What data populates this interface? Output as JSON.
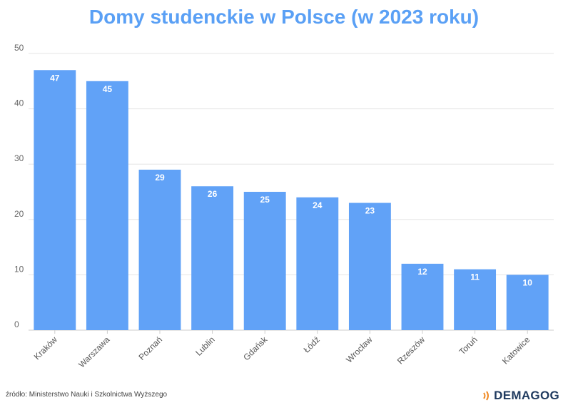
{
  "chart_data": {
    "type": "bar",
    "title": "Domy studenckie w Polsce (w 2023 roku)",
    "categories": [
      "Kraków",
      "Warszawa",
      "Poznań",
      "Lublin",
      "Gdańsk",
      "Łódź",
      "Wrocław",
      "Rzeszów",
      "Toruń",
      "Katowice"
    ],
    "values": [
      47,
      45,
      29,
      26,
      25,
      24,
      23,
      12,
      11,
      10
    ],
    "ylim": [
      0,
      50
    ],
    "yticks": [
      0,
      10,
      20,
      30,
      40,
      50
    ],
    "grid": true,
    "bar_color": "#61a2f7",
    "xlabel": "",
    "ylabel": ""
  },
  "footer": {
    "source": "źródło: Ministerstwo Nauki i Szkolnictwa Wyższego",
    "brand": "DEMAGOG",
    "brand_icon": "signal-waves-icon",
    "brand_icon_color": "#f08a24"
  }
}
